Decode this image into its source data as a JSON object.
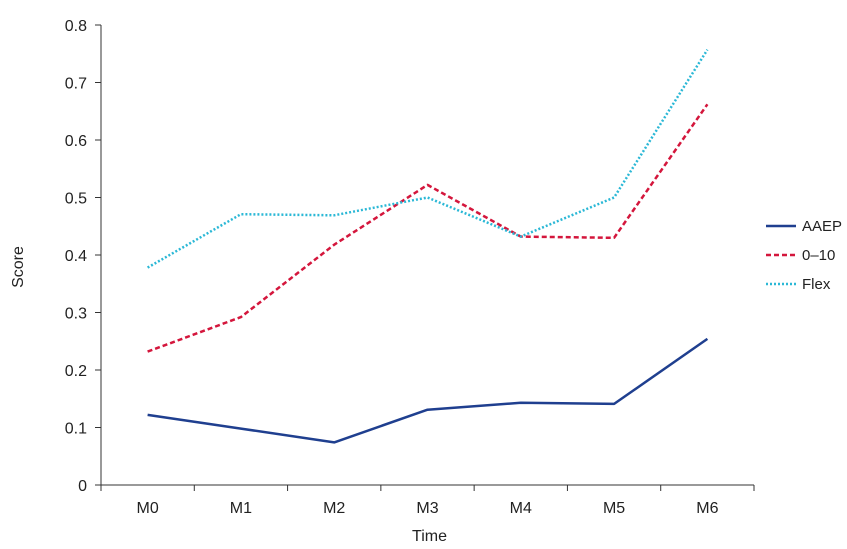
{
  "chart_data": {
    "type": "line",
    "title": "",
    "xlabel": "Time",
    "ylabel": "Score",
    "categories": [
      "M0",
      "M1",
      "M2",
      "M3",
      "M4",
      "M5",
      "M6"
    ],
    "ylim": [
      0,
      0.8
    ],
    "yticks": [
      0,
      0.1,
      0.2,
      0.3,
      0.4,
      0.5,
      0.6,
      0.7,
      0.8
    ],
    "ytick_labels": [
      "0",
      "0.1",
      "0.2",
      "0.3",
      "0.4",
      "0.5",
      "0.6",
      "0.7",
      "0.8"
    ],
    "grid": false,
    "legend_position": "right",
    "series": [
      {
        "name": "AAEP",
        "values": [
          0.122,
          0.098,
          0.074,
          0.131,
          0.143,
          0.141,
          0.254
        ],
        "color": "#1f3f8f",
        "dash": "solid"
      },
      {
        "name": "0–10",
        "values": [
          0.232,
          0.292,
          0.418,
          0.522,
          0.432,
          0.43,
          0.662
        ],
        "color": "#d4163c",
        "dash": "dashed"
      },
      {
        "name": "Flex",
        "values": [
          0.378,
          0.471,
          0.469,
          0.5,
          0.432,
          0.5,
          0.757
        ],
        "color": "#2bb8d6",
        "dash": "dotted"
      }
    ]
  }
}
